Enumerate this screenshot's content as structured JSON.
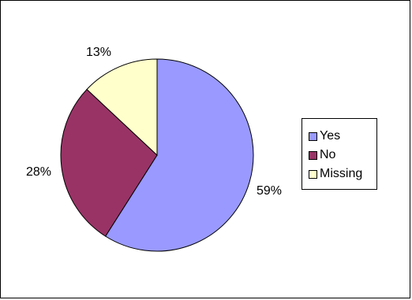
{
  "chart_data": {
    "type": "pie",
    "categories": [
      "Yes",
      "No",
      "Missing"
    ],
    "values": [
      59,
      28,
      13
    ],
    "labels": [
      "59%",
      "28%",
      "13%"
    ],
    "colors": [
      "#9999ff",
      "#993366",
      "#ffffcc"
    ],
    "legend_placement": "right"
  }
}
